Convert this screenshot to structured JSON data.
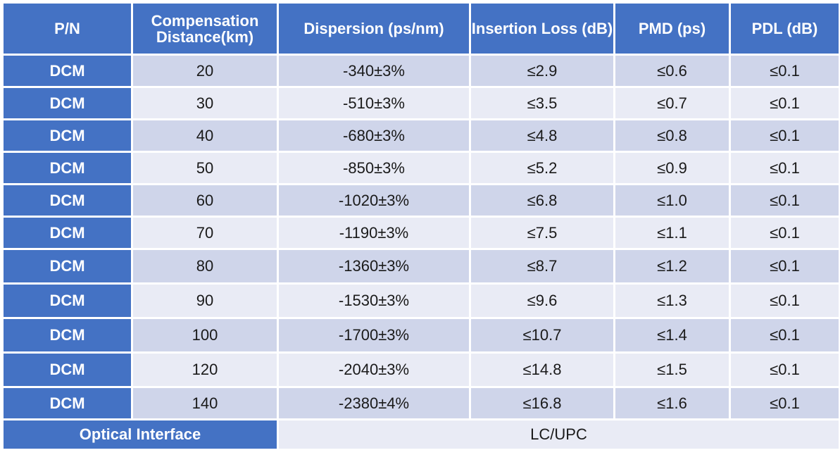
{
  "table": {
    "headers": {
      "pn": "P/N",
      "distance": "Compensation Distance(km)",
      "dispersion": "Dispersion (ps/nm)",
      "insertion_loss": "Insertion Loss (dB)",
      "pmd": "PMD (ps)",
      "pdl": "PDL (dB)"
    },
    "rows": [
      {
        "pn": "DCM",
        "distance": "20",
        "dispersion": "-340±3%",
        "insertion_loss": "≤2.9",
        "pmd": "≤0.6",
        "pdl": "≤0.1"
      },
      {
        "pn": "DCM",
        "distance": "30",
        "dispersion": "-510±3%",
        "insertion_loss": "≤3.5",
        "pmd": "≤0.7",
        "pdl": "≤0.1"
      },
      {
        "pn": "DCM",
        "distance": "40",
        "dispersion": "-680±3%",
        "insertion_loss": "≤4.8",
        "pmd": "≤0.8",
        "pdl": "≤0.1"
      },
      {
        "pn": "DCM",
        "distance": "50",
        "dispersion": "-850±3%",
        "insertion_loss": "≤5.2",
        "pmd": "≤0.9",
        "pdl": "≤0.1"
      },
      {
        "pn": "DCM",
        "distance": "60",
        "dispersion": "-1020±3%",
        "insertion_loss": "≤6.8",
        "pmd": "≤1.0",
        "pdl": "≤0.1"
      },
      {
        "pn": "DCM",
        "distance": "70",
        "dispersion": "-1190±3%",
        "insertion_loss": "≤7.5",
        "pmd": "≤1.1",
        "pdl": "≤0.1"
      },
      {
        "pn": "DCM",
        "distance": "80",
        "dispersion": "-1360±3%",
        "insertion_loss": "≤8.7",
        "pmd": "≤1.2",
        "pdl": "≤0.1"
      },
      {
        "pn": "DCM",
        "distance": "90",
        "dispersion": "-1530±3%",
        "insertion_loss": "≤9.6",
        "pmd": "≤1.3",
        "pdl": "≤0.1"
      },
      {
        "pn": "DCM",
        "distance": "100",
        "dispersion": "-1700±3%",
        "insertion_loss": "≤10.7",
        "pmd": "≤1.4",
        "pdl": "≤0.1"
      },
      {
        "pn": "DCM",
        "distance": "120",
        "dispersion": "-2040±3%",
        "insertion_loss": "≤14.8",
        "pmd": "≤1.5",
        "pdl": "≤0.1"
      },
      {
        "pn": "DCM",
        "distance": "140",
        "dispersion": "-2380±4%",
        "insertion_loss": "≤16.8",
        "pmd": "≤1.6",
        "pdl": "≤0.1"
      }
    ],
    "footer": {
      "label": "Optical Interface",
      "value": "LC/UPC"
    }
  },
  "colors": {
    "header_bg": "#4472c4",
    "row_odd_bg": "#cfd5ea",
    "row_even_bg": "#e9ebf5"
  }
}
